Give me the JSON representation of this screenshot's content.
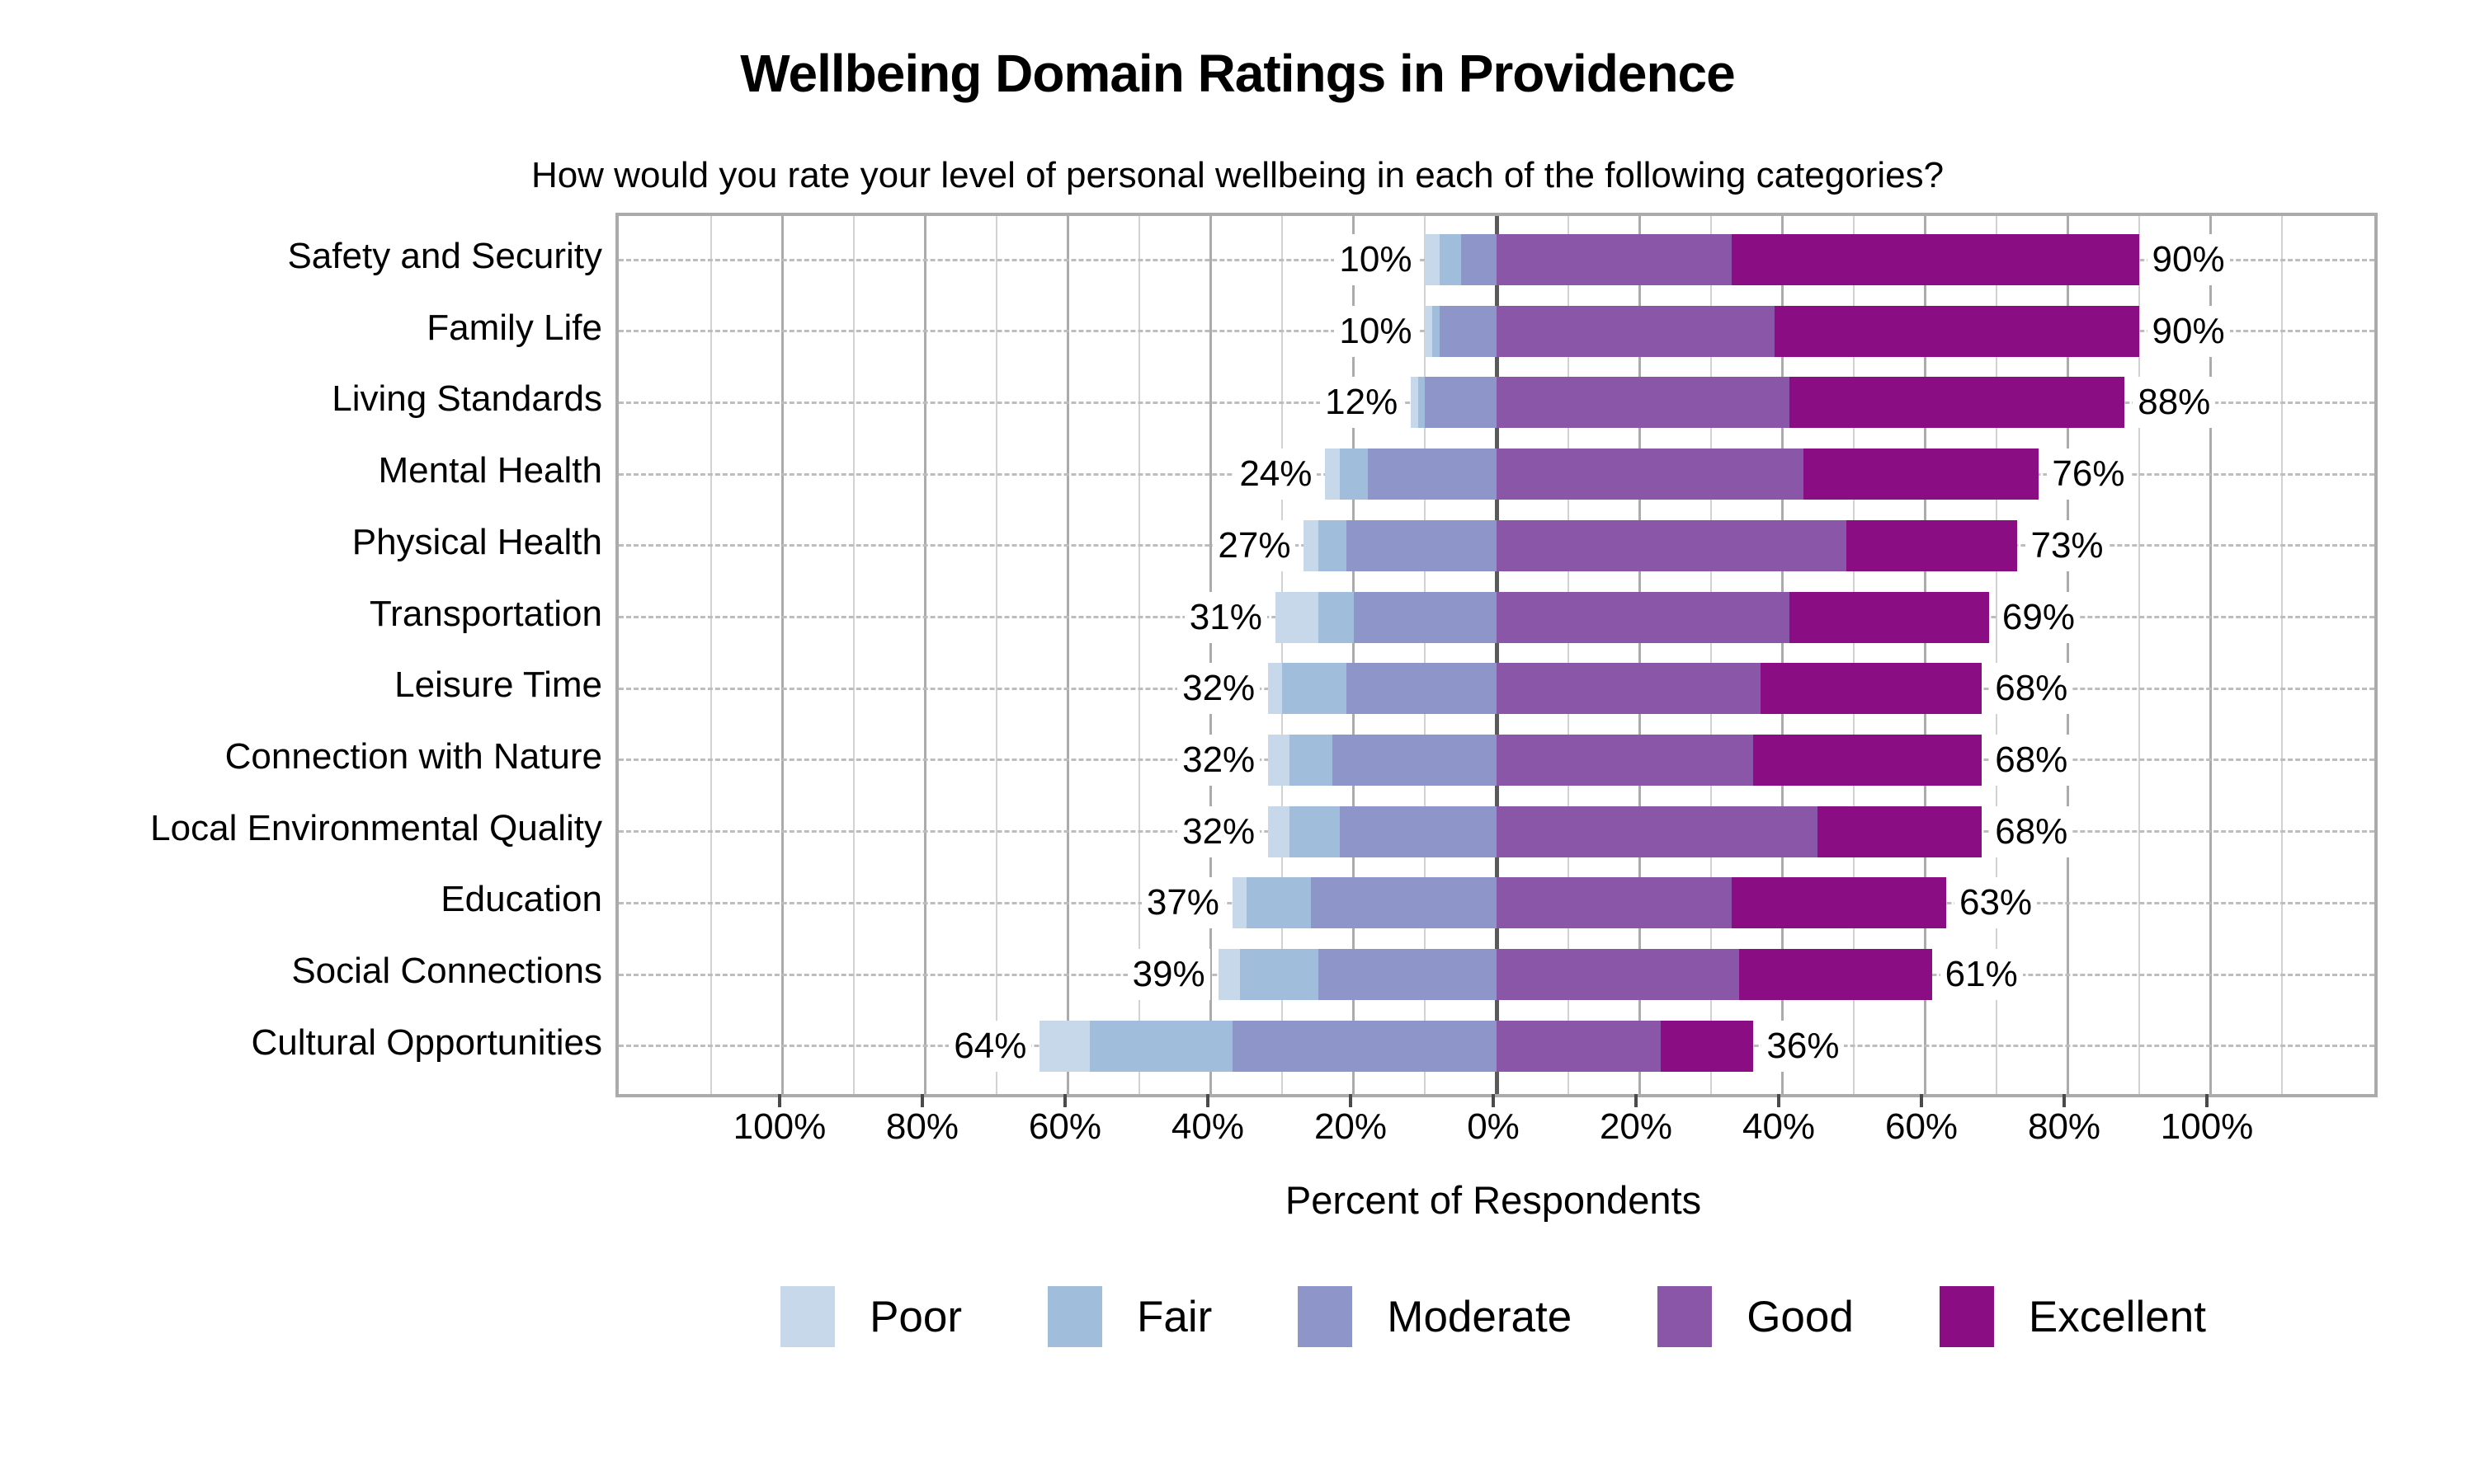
{
  "title": "Wellbeing Domain Ratings in Providence",
  "subtitle": "How would you rate your level of personal wellbeing in each of the following categories?",
  "xlabel": "Percent of Respondents",
  "chart_data": {
    "type": "bar",
    "subtype": "diverging-stacked-likert",
    "title": "Wellbeing Domain Ratings in Providence",
    "question": "How would you rate your level of personal wellbeing in each of the following categories?",
    "categories": [
      "Safety and Security",
      "Family Life",
      "Living Standards",
      "Mental Health",
      "Physical Health",
      "Transportation",
      "Leisure Time",
      "Connection with Nature",
      "Local Environmental Quality",
      "Education",
      "Social Connections",
      "Cultural Opportunities"
    ],
    "series": [
      {
        "name": "Poor",
        "side": "negative",
        "color": "#c7d8ea",
        "values": [
          2,
          1,
          1,
          2,
          2,
          6,
          2,
          3,
          3,
          2,
          3,
          7
        ]
      },
      {
        "name": "Fair",
        "side": "negative",
        "color": "#a0bddb",
        "values": [
          3,
          1,
          1,
          4,
          4,
          5,
          9,
          6,
          7,
          9,
          11,
          20
        ]
      },
      {
        "name": "Moderate",
        "side": "negative",
        "color": "#8e95c8",
        "values": [
          5,
          8,
          10,
          18,
          21,
          20,
          21,
          23,
          22,
          26,
          25,
          37
        ]
      },
      {
        "name": "Good",
        "side": "positive",
        "color": "#8a56a7",
        "values": [
          33,
          39,
          41,
          43,
          49,
          41,
          37,
          36,
          45,
          33,
          34,
          23
        ]
      },
      {
        "name": "Excellent",
        "side": "positive",
        "color": "#8b0d84",
        "values": [
          57,
          51,
          47,
          33,
          24,
          28,
          31,
          32,
          23,
          30,
          27,
          13
        ]
      }
    ],
    "left_total_labels": [
      "10%",
      "10%",
      "12%",
      "24%",
      "27%",
      "31%",
      "32%",
      "32%",
      "32%",
      "37%",
      "39%",
      "64%"
    ],
    "right_total_labels": [
      "90%",
      "90%",
      "88%",
      "76%",
      "73%",
      "69%",
      "68%",
      "68%",
      "68%",
      "63%",
      "61%",
      "36%"
    ],
    "xlabel": "Percent of Respondents",
    "axis": {
      "range": [
        -123,
        123
      ],
      "major_ticks": [
        -100,
        -80,
        -60,
        -40,
        -20,
        0,
        20,
        40,
        60,
        80,
        100
      ],
      "tick_labels": [
        "100%",
        "80%",
        "60%",
        "40%",
        "20%",
        "0%",
        "20%",
        "40%",
        "60%",
        "80%",
        "100%"
      ],
      "minor_grid_step": 10,
      "grid": true,
      "zero_line": true
    },
    "legend_position": "bottom",
    "legend": [
      "Poor",
      "Fair",
      "Moderate",
      "Good",
      "Excellent"
    ]
  }
}
